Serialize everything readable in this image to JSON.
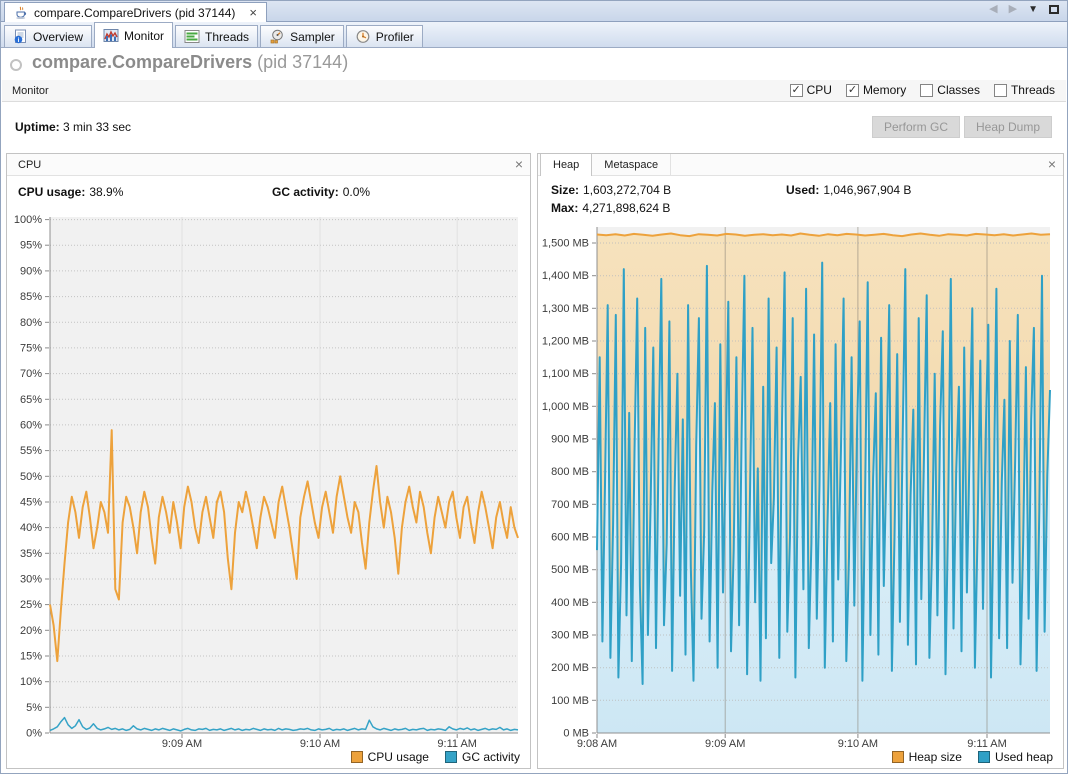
{
  "glyphs": {
    "check": "✓",
    "close": "×",
    "back": "◀",
    "forward": "▶",
    "menu": "▼"
  },
  "window": {
    "doc_tab_label": "compare.CompareDrivers (pid 37144)"
  },
  "tabs": {
    "items": [
      {
        "label": "Overview"
      },
      {
        "label": "Monitor"
      },
      {
        "label": "Threads"
      },
      {
        "label": "Sampler"
      },
      {
        "label": "Profiler"
      }
    ],
    "selected": "Monitor"
  },
  "header": {
    "title": "compare.CompareDrivers",
    "pid": "(pid 37144)"
  },
  "toolbar": {
    "label": "Monitor",
    "checkboxes": [
      {
        "label": "CPU",
        "checked": true
      },
      {
        "label": "Memory",
        "checked": true
      },
      {
        "label": "Classes",
        "checked": false
      },
      {
        "label": "Threads",
        "checked": false
      }
    ]
  },
  "status": {
    "uptime_label": "Uptime:",
    "uptime_value": "3 min 33 sec",
    "gc_button": "Perform GC",
    "heap_dump_button": "Heap Dump"
  },
  "cpu_panel": {
    "title": "CPU",
    "stats": {
      "cpu_label": "CPU usage:",
      "cpu_value": "38.9%",
      "gc_label": "GC activity:",
      "gc_value": "0.0%"
    }
  },
  "heap_panel": {
    "tabs": [
      {
        "label": "Heap"
      },
      {
        "label": "Metaspace"
      }
    ],
    "selected_tab": "Heap",
    "stats": {
      "size_label": "Size:",
      "size_value": "1,603,272,704 B",
      "used_label": "Used:",
      "used_value": "1,046,967,904 B",
      "max_label": "Max:",
      "max_value": "4,271,898,624 B"
    }
  },
  "chart_data": [
    {
      "id": "cpu",
      "type": "line",
      "title": "CPU",
      "ylabel": "percent",
      "ylim": [
        0,
        100.5
      ],
      "grid": true,
      "legend_position": "bottom-right",
      "plot_bg": "#f1f1f1",
      "vline_color": "#d8d8d8",
      "xticks": [
        {
          "pos": 0.282,
          "label": "9:09 AM"
        },
        {
          "pos": 0.577,
          "label": "9:10 AM"
        },
        {
          "pos": 0.87,
          "label": "9:11 AM"
        }
      ],
      "yticks": [
        {
          "v": 100,
          "label": "100%"
        },
        {
          "v": 95,
          "label": "95%"
        },
        {
          "v": 90,
          "label": "90%"
        },
        {
          "v": 85,
          "label": "85%"
        },
        {
          "v": 80,
          "label": "80%"
        },
        {
          "v": 75,
          "label": "75%"
        },
        {
          "v": 70,
          "label": "70%"
        },
        {
          "v": 65,
          "label": "65%"
        },
        {
          "v": 60,
          "label": "60%"
        },
        {
          "v": 55,
          "label": "55%"
        },
        {
          "v": 50,
          "label": "50%"
        },
        {
          "v": 45,
          "label": "45%"
        },
        {
          "v": 40,
          "label": "40%"
        },
        {
          "v": 35,
          "label": "35%"
        },
        {
          "v": 30,
          "label": "30%"
        },
        {
          "v": 25,
          "label": "25%"
        },
        {
          "v": 20,
          "label": "20%"
        },
        {
          "v": 15,
          "label": "15%"
        },
        {
          "v": 10,
          "label": "10%"
        },
        {
          "v": 5,
          "label": "5%"
        },
        {
          "v": 0,
          "label": "0%"
        }
      ],
      "series": [
        {
          "name": "CPU usage",
          "color": "#eda23c",
          "width": 2,
          "values": [
            25,
            21,
            14,
            24,
            33,
            41,
            46,
            43,
            38,
            44,
            47,
            42,
            36,
            40,
            45,
            43,
            39,
            59,
            28,
            26,
            41,
            46,
            44,
            40,
            35,
            43,
            47,
            44,
            38,
            33,
            42,
            46,
            43,
            39,
            45,
            41,
            36,
            44,
            48,
            45,
            40,
            37,
            43,
            46,
            42,
            38,
            45,
            47,
            43,
            34,
            28,
            39,
            45,
            43,
            47,
            44,
            40,
            36,
            42,
            46,
            44,
            41,
            38,
            45,
            48,
            44,
            40,
            35,
            30,
            42,
            46,
            49,
            45,
            41,
            38,
            44,
            47,
            43,
            39,
            46,
            50,
            46,
            42,
            39,
            45,
            43,
            37,
            32,
            41,
            47,
            52,
            45,
            40,
            46,
            43,
            38,
            31,
            40,
            45,
            48,
            44,
            41,
            47,
            44,
            39,
            35,
            42,
            46,
            43,
            40,
            45,
            47,
            42,
            38,
            44,
            46,
            41,
            37,
            43,
            47,
            44,
            40,
            36,
            42,
            45,
            41,
            38,
            44,
            40,
            38
          ]
        },
        {
          "name": "GC activity",
          "color": "#35a3c7",
          "width": 1.5,
          "values": [
            0.5,
            0.8,
            1.2,
            2.2,
            3.0,
            1.6,
            0.9,
            1.4,
            2.6,
            1.2,
            0.7,
            1.0,
            1.8,
            0.9,
            0.6,
            0.8,
            1.1,
            0.7,
            0.9,
            0.6,
            0.8,
            0.5,
            0.7,
            1.4,
            0.8,
            0.6,
            0.9,
            0.7,
            0.5,
            0.8,
            0.6,
            0.9,
            0.7,
            0.5,
            0.8,
            0.6,
            0.4,
            0.7,
            0.9,
            0.6,
            0.5,
            0.8,
            0.7,
            0.9,
            0.5,
            0.7,
            0.6,
            0.8,
            0.5,
            0.7,
            0.9,
            0.6,
            0.8,
            0.5,
            0.7,
            0.6,
            0.9,
            0.7,
            0.5,
            0.8,
            0.6,
            0.7,
            0.5,
            0.9,
            0.6,
            0.8,
            0.7,
            0.5,
            0.6,
            0.8,
            0.7,
            0.9,
            0.6,
            0.5,
            0.8,
            0.6,
            0.7,
            0.9,
            0.5,
            0.7,
            0.6,
            0.8,
            0.5,
            0.7,
            0.9,
            0.6,
            0.8,
            0.7,
            2.5,
            1.2,
            0.8,
            0.6,
            0.9,
            0.7,
            0.5,
            0.8,
            0.6,
            0.7,
            0.9,
            0.5,
            0.7,
            0.6,
            0.8,
            0.9,
            0.5,
            0.7,
            0.6,
            0.8,
            0.7,
            0.5,
            1.2,
            0.8,
            0.6,
            0.9,
            0.7,
            1.0,
            0.6,
            0.8,
            0.5,
            0.7,
            0.9,
            0.6,
            0.8,
            0.7,
            1.1,
            0.6,
            0.8,
            0.5,
            0.7,
            0.6
          ]
        }
      ]
    },
    {
      "id": "heap",
      "type": "area",
      "title": "Heap",
      "ylabel": "MB",
      "ylim": [
        0,
        1549
      ],
      "grid": true,
      "legend_position": "bottom-right",
      "plot_bg": "#f1f1f1",
      "vline_color": "#8c8579",
      "xticks": [
        {
          "pos": 0.0,
          "label": "9:08 AM"
        },
        {
          "pos": 0.283,
          "label": "9:09 AM"
        },
        {
          "pos": 0.576,
          "label": "9:10 AM"
        },
        {
          "pos": 0.861,
          "label": "9:11 AM"
        }
      ],
      "yticks": [
        {
          "v": 1500,
          "label": "1,500 MB"
        },
        {
          "v": 1400,
          "label": "1,400 MB"
        },
        {
          "v": 1300,
          "label": "1,300 MB"
        },
        {
          "v": 1200,
          "label": "1,200 MB"
        },
        {
          "v": 1100,
          "label": "1,100 MB"
        },
        {
          "v": 1000,
          "label": "1,000 MB"
        },
        {
          "v": 900,
          "label": "900 MB"
        },
        {
          "v": 800,
          "label": "800 MB"
        },
        {
          "v": 700,
          "label": "700 MB"
        },
        {
          "v": 600,
          "label": "600 MB"
        },
        {
          "v": 500,
          "label": "500 MB"
        },
        {
          "v": 400,
          "label": "400 MB"
        },
        {
          "v": 300,
          "label": "300 MB"
        },
        {
          "v": 200,
          "label": "200 MB"
        },
        {
          "v": 100,
          "label": "100 MB"
        },
        {
          "v": 0,
          "label": "0 MB"
        }
      ],
      "series": [
        {
          "name": "Heap size",
          "color": "#eda23c",
          "width": 2,
          "fill_from": "#f6e2bd",
          "fill_to": "#f0cf9c",
          "values": [
            1526,
            1524,
            1527,
            1523,
            1528,
            1525,
            1522,
            1526,
            1529,
            1524,
            1521,
            1527,
            1525,
            1523,
            1528,
            1526,
            1522,
            1525,
            1527,
            1524,
            1526,
            1523,
            1529,
            1525,
            1522,
            1527,
            1524,
            1528,
            1526,
            1523,
            1525,
            1528,
            1524,
            1521,
            1526,
            1529,
            1525,
            1522,
            1527,
            1525,
            1523,
            1528,
            1526,
            1524,
            1527,
            1523,
            1526,
            1529,
            1525,
            1527
          ]
        },
        {
          "name": "Used heap",
          "color": "#2fa0c6",
          "width": 2,
          "fill_from": "#eaf6fc",
          "fill_to": "#cde7f4",
          "values": [
            560,
            1150,
            280,
            760,
            1310,
            230,
            640,
            1280,
            170,
            520,
            1420,
            360,
            980,
            220,
            860,
            1330,
            450,
            150,
            1240,
            300,
            700,
            1180,
            260,
            900,
            1390,
            330,
            580,
            1260,
            190,
            750,
            1100,
            420,
            960,
            240,
            1310,
            510,
            160,
            880,
            1270,
            350,
            620,
            1430,
            280,
            740,
            1010,
            200,
            1190,
            430,
            840,
            1320,
            250,
            560,
            1150,
            330,
            930,
            1400,
            180,
            690,
            1240,
            400,
            810,
            160,
            1060,
            290,
            1330,
            520,
            720,
            1180,
            230,
            950,
            1410,
            310,
            600,
            1270,
            170,
            830,
            1090,
            440,
            1360,
            260,
            580,
            1220,
            350,
            760,
            1440,
            200,
            640,
            1010,
            280,
            1190,
            470,
            860,
            1330,
            220,
            540,
            1150,
            390,
            920,
            1260,
            160,
            700,
            1380,
            300,
            780,
            1040,
            240,
            1210,
            450,
            830,
            1310,
            190,
            600,
            1160,
            340,
            890,
            1420,
            270,
            730,
            990,
            210,
            1270,
            410,
            850,
            1340,
            230,
            570,
            1100,
            360,
            940,
            1230,
            180,
            660,
            1390,
            320,
            800,
            1060,
            250,
            1180,
            430,
            870,
            1300,
            200,
            620,
            1140,
            380,
            910,
            1250,
            170,
            710,
            1360,
            290,
            770,
            1020,
            260,
            1200,
            460,
            840,
            1280,
            210,
            590,
            1120,
            350,
            960,
            1240,
            190,
            680,
            1400,
            310,
            790,
            1050
          ]
        }
      ]
    }
  ]
}
